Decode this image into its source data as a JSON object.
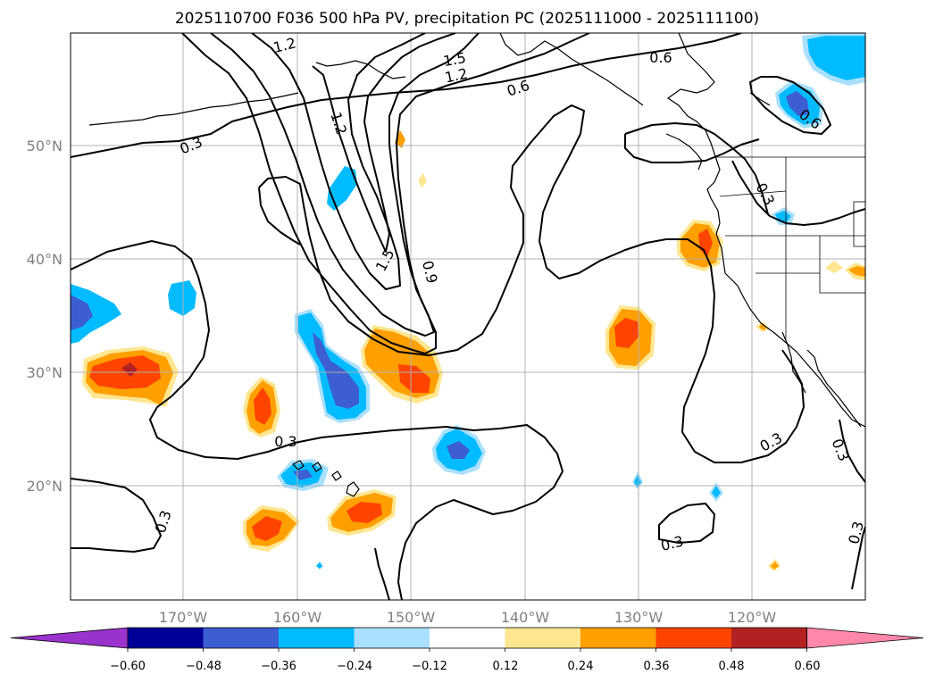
{
  "title": "2025110700 F036 500 hPa PV, precipitation PC (2025111000 - 2025111100)",
  "axes": {
    "lon_labels": [
      "170°W",
      "160°W",
      "150°W",
      "140°W",
      "130°W",
      "120°W"
    ],
    "lat_labels": [
      "50°N",
      "40°N",
      "30°N",
      "20°N"
    ],
    "lon_range": [
      -180,
      -110
    ],
    "lat_range": [
      10,
      60
    ],
    "grid": true
  },
  "pv_contour_labels": [
    "1.2",
    "1.5",
    "1.2",
    "0.6",
    "0.6",
    "0.3",
    "1.2",
    "1.5",
    "0.9",
    "0.6",
    "0.3",
    "0.3",
    "0.3",
    "0.3",
    "0.3",
    "0.3",
    "0.3"
  ],
  "colorbar": {
    "colors": [
      "#9933cc",
      "#000099",
      "#3d5ed1",
      "#00bbff",
      "#aae0ff",
      "#ffffff",
      "#ffe690",
      "#ff9f00",
      "#ff4400",
      "#b22222",
      "#ff88aa"
    ],
    "tick_labels": [
      "−0.60",
      "−0.48",
      "−0.36",
      "−0.24",
      "−0.12",
      "0.12",
      "0.24",
      "0.36",
      "0.48",
      "0.60"
    ]
  }
}
